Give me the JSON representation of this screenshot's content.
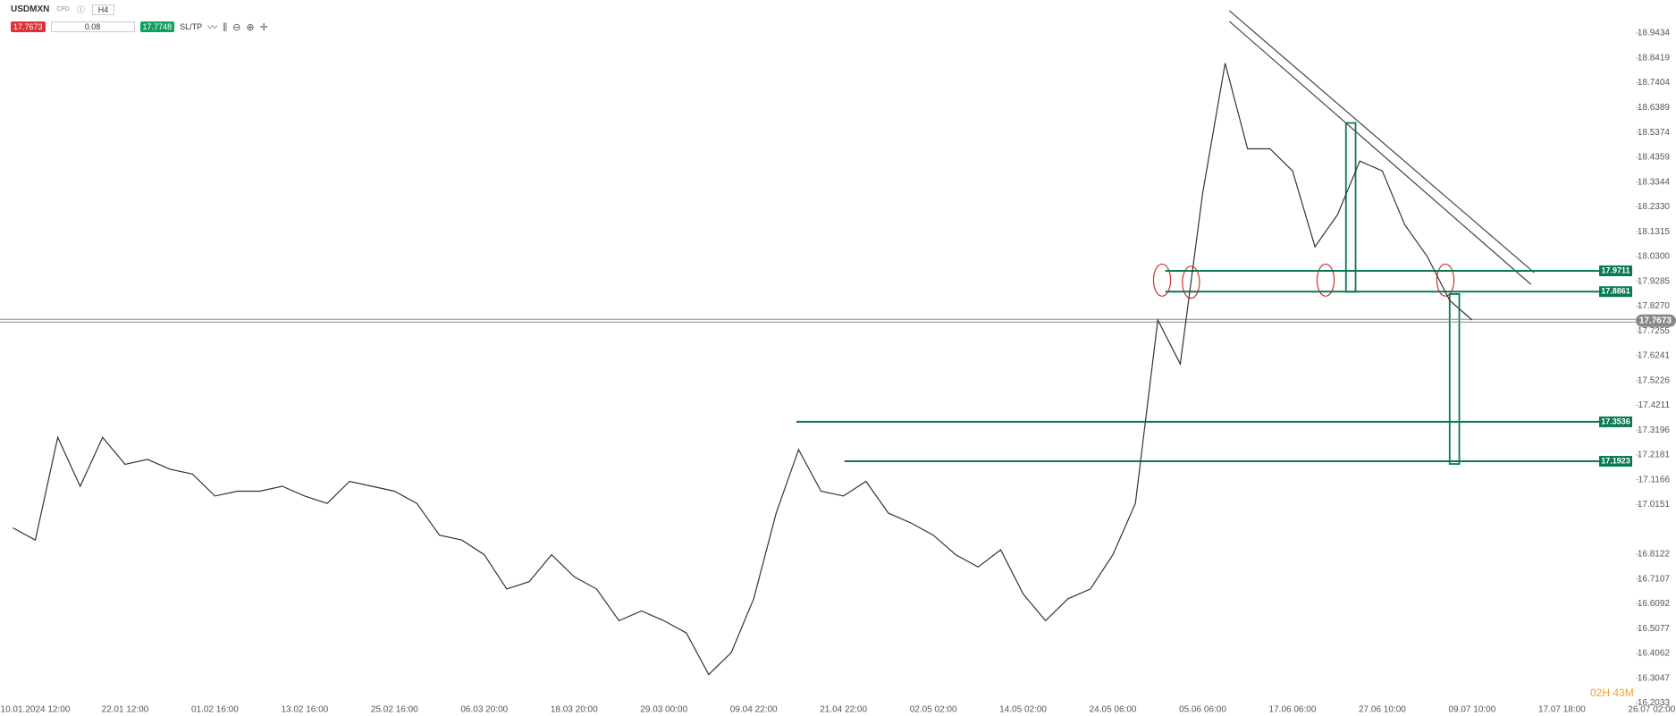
{
  "toolbar": {
    "symbol": "USDMXN",
    "type": "CFD",
    "timeframe": "H4",
    "sell": "17.7673",
    "volume": "0.08",
    "buy": "17.7748",
    "sltp": "SL/TP"
  },
  "countdown": "02H 43M",
  "chart_data": {
    "type": "line",
    "categories": [
      null,
      "10.01.2024 12:00",
      null,
      null,
      null,
      "22.01 12:00",
      null,
      null,
      null,
      "01.02 16:00",
      null,
      null,
      null,
      "13.02 16:00",
      null,
      null,
      null,
      "25.02 16:00",
      null,
      null,
      null,
      "06.03 20:00",
      null,
      null,
      null,
      "18.03 20:00",
      null,
      null,
      null,
      "29.03 00:00",
      null,
      null,
      null,
      "09.04 22:00",
      null,
      null,
      null,
      "21.04 22:00",
      null,
      null,
      null,
      "02.05 02:00",
      null,
      null,
      null,
      "14.05 02:00",
      null,
      null,
      null,
      "24.05 06:00",
      null,
      null,
      null,
      "05.06 06:00",
      null,
      null,
      null,
      "17.06 06:00",
      null,
      null,
      null,
      "27.06 10:00",
      null,
      null,
      null,
      "09.07 10:00",
      null,
      null,
      null,
      "17.07 18:00",
      null,
      null,
      null,
      "26.07 02:00"
    ],
    "series": [
      {
        "name": "USDMXN",
        "color": "#333333",
        "values": [
          16.92,
          16.87,
          17.29,
          17.09,
          17.29,
          17.18,
          17.2,
          17.16,
          17.14,
          17.05,
          17.07,
          17.07,
          17.09,
          17.05,
          17.02,
          17.11,
          17.09,
          17.07,
          17.02,
          16.89,
          16.87,
          16.81,
          16.67,
          16.7,
          16.81,
          16.72,
          16.67,
          16.54,
          16.58,
          16.54,
          16.49,
          16.32,
          16.41,
          16.63,
          16.98,
          17.24,
          17.07,
          17.05,
          17.11,
          16.98,
          16.94,
          16.89,
          16.81,
          16.76,
          16.83,
          16.65,
          16.54,
          16.63,
          16.67,
          16.81,
          17.02,
          17.77,
          17.59,
          18.29,
          18.82,
          18.47,
          18.47,
          18.38,
          18.07,
          18.2,
          18.42,
          18.38,
          18.16,
          18.03,
          17.85,
          17.77,
          null,
          null,
          null,
          null,
          null,
          null,
          null,
          null
        ]
      }
    ],
    "ylim": [
      16.1943,
      19.0789
    ],
    "yticks": [
      18.9434,
      18.8419,
      18.7404,
      18.6389,
      18.5374,
      18.4359,
      18.3344,
      {
        "value": 18.233,
        "label": "18.2330"
      },
      18.1315,
      {
        "value": 18.03,
        "label": "18.0300"
      },
      17.9285,
      {
        "value": 17.827,
        "label": "17.8270"
      },
      17.7255,
      17.6241,
      17.5226,
      17.4211,
      17.3196,
      17.2181,
      17.1166,
      17.0151,
      16.8122,
      16.7107,
      16.6092,
      16.5077,
      16.4062,
      16.3047,
      16.2033
    ],
    "levels": [
      17.9711,
      17.8861,
      17.3536,
      17.1923
    ],
    "level_color": "#0a7a50",
    "current_price": 17.7673
  }
}
